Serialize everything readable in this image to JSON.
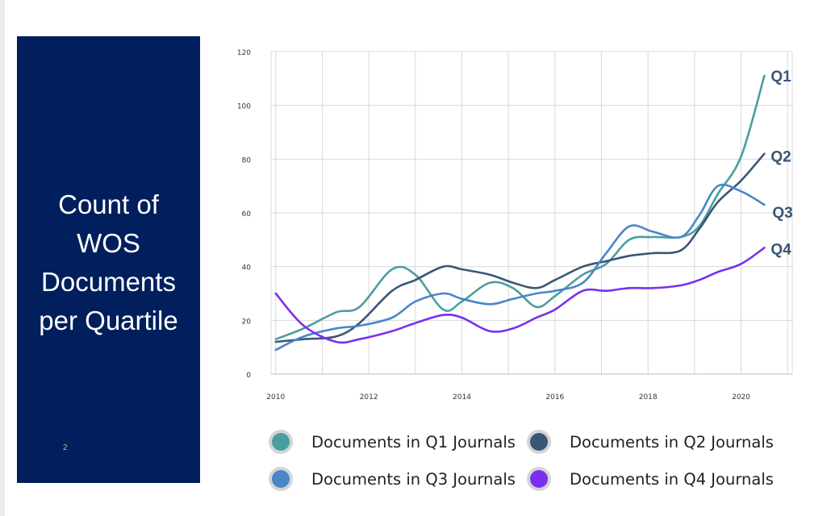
{
  "slide": {
    "title": "Count of\nWOS\nDocuments\nper Quartile",
    "page_number": "2"
  },
  "chart_data": {
    "type": "line",
    "title": "",
    "xlabel": "",
    "ylabel": "",
    "xlim": [
      2009.9,
      2021.1
    ],
    "ylim": [
      0,
      120
    ],
    "x_ticks": [
      2010,
      2012,
      2014,
      2016,
      2018,
      2020
    ],
    "y_ticks": [
      0,
      20,
      40,
      60,
      80,
      100,
      120
    ],
    "grid": true,
    "legend_position": "bottom",
    "series": [
      {
        "name": "Documents in Q1 Journals",
        "end_label": "Q1",
        "color": "#4a9e9e",
        "x": [
          2010,
          2010.6,
          2011.3,
          2011.8,
          2012.5,
          2013.0,
          2013.6,
          2014.0,
          2014.6,
          2015.1,
          2015.6,
          2016.0,
          2016.6,
          2017.1,
          2017.6,
          2018.1,
          2018.7,
          2019.1,
          2019.5,
          2020.0,
          2020.5
        ],
        "y": [
          13,
          17,
          23,
          25,
          39,
          37,
          24,
          27,
          34,
          32,
          25,
          29,
          37,
          41,
          50,
          51,
          51,
          55,
          67,
          81,
          111
        ]
      },
      {
        "name": "Documents in Q2 Journals",
        "end_label": "Q2",
        "color": "#3a5677",
        "x": [
          2010,
          2010.6,
          2011.3,
          2011.8,
          2012.5,
          2013.0,
          2013.6,
          2014.0,
          2014.6,
          2015.1,
          2015.6,
          2016.0,
          2016.6,
          2017.1,
          2017.6,
          2018.1,
          2018.7,
          2019.1,
          2019.5,
          2020.0,
          2020.5
        ],
        "y": [
          12,
          13,
          14,
          19,
          31,
          35,
          40,
          39,
          37,
          34,
          32,
          35,
          40,
          42,
          44,
          45,
          46,
          54,
          64,
          72,
          82
        ]
      },
      {
        "name": "Documents in Q3 Journals",
        "end_label": "Q3",
        "color": "#4a86c8",
        "x": [
          2010,
          2010.6,
          2011.3,
          2011.8,
          2012.5,
          2013.0,
          2013.6,
          2014.0,
          2014.6,
          2015.1,
          2015.6,
          2016.0,
          2016.6,
          2017.1,
          2017.6,
          2018.1,
          2018.7,
          2019.1,
          2019.5,
          2020.0,
          2020.5
        ],
        "y": [
          9,
          14,
          17,
          18,
          21,
          27,
          30,
          28,
          26,
          28,
          30,
          31,
          34,
          45,
          55,
          53,
          51,
          59,
          70,
          68,
          63
        ]
      },
      {
        "name": "Documents in Q4 Journals",
        "end_label": "Q4",
        "color": "#7a2ff0",
        "x": [
          2010,
          2010.6,
          2011.3,
          2011.8,
          2012.5,
          2013.0,
          2013.6,
          2014.0,
          2014.6,
          2015.1,
          2015.6,
          2016.0,
          2016.6,
          2017.1,
          2017.6,
          2018.1,
          2018.7,
          2019.1,
          2019.5,
          2020.0,
          2020.5
        ],
        "y": [
          30,
          18,
          12,
          13,
          16,
          19,
          22,
          21,
          16,
          17,
          21,
          24,
          31,
          31,
          32,
          32,
          33,
          35,
          38,
          41,
          47
        ]
      }
    ]
  }
}
